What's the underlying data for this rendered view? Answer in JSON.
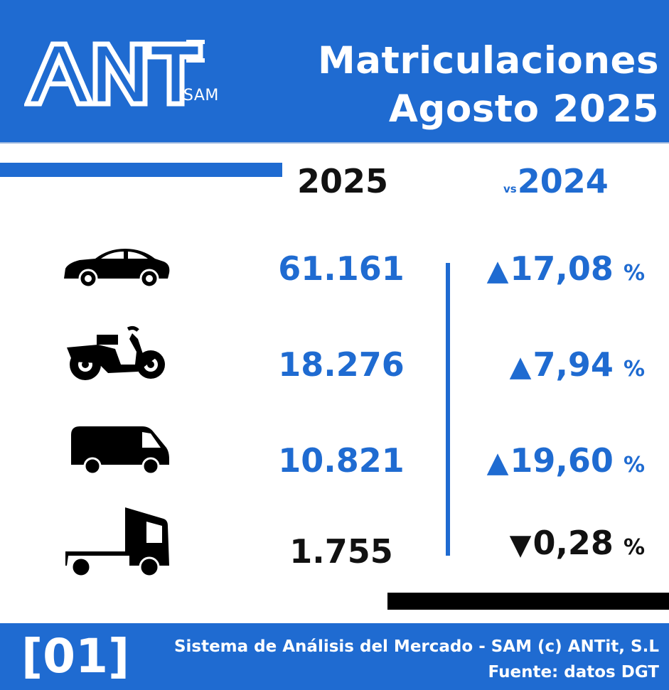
{
  "header": {
    "logo_sub": "SAM",
    "title_line1": "Matriculaciones",
    "title_line2": "Agosto 2025",
    "bg_color": "#1f6bd1"
  },
  "columns": {
    "current_year": "2025",
    "vs_label": "vs",
    "previous_year": "2024"
  },
  "rows": [
    {
      "icon": "car-icon",
      "value": "61.161",
      "arrow": "▲",
      "change": "17,08",
      "pct": "%",
      "value_color": "#1f6bd1",
      "change_color": "#1f6bd1"
    },
    {
      "icon": "motorcycle-icon",
      "value": "18.276",
      "arrow": "▲",
      "change": "7,94",
      "pct": "%",
      "value_color": "#1f6bd1",
      "change_color": "#1f6bd1"
    },
    {
      "icon": "van-icon",
      "value": "10.821",
      "arrow": "▲",
      "change": "19,60",
      "pct": "%",
      "value_color": "#1f6bd1",
      "change_color": "#1f6bd1"
    },
    {
      "icon": "truck-icon",
      "value": "1.755",
      "arrow": "▼",
      "change": "0,28",
      "pct": "%",
      "value_color": "#111111",
      "change_color": "#111111"
    }
  ],
  "footer": {
    "tag": "[01]",
    "line1": "Sistema de Análisis del Mercado - SAM (c) ANTit, S.L",
    "line2": "Fuente: datos DGT"
  }
}
